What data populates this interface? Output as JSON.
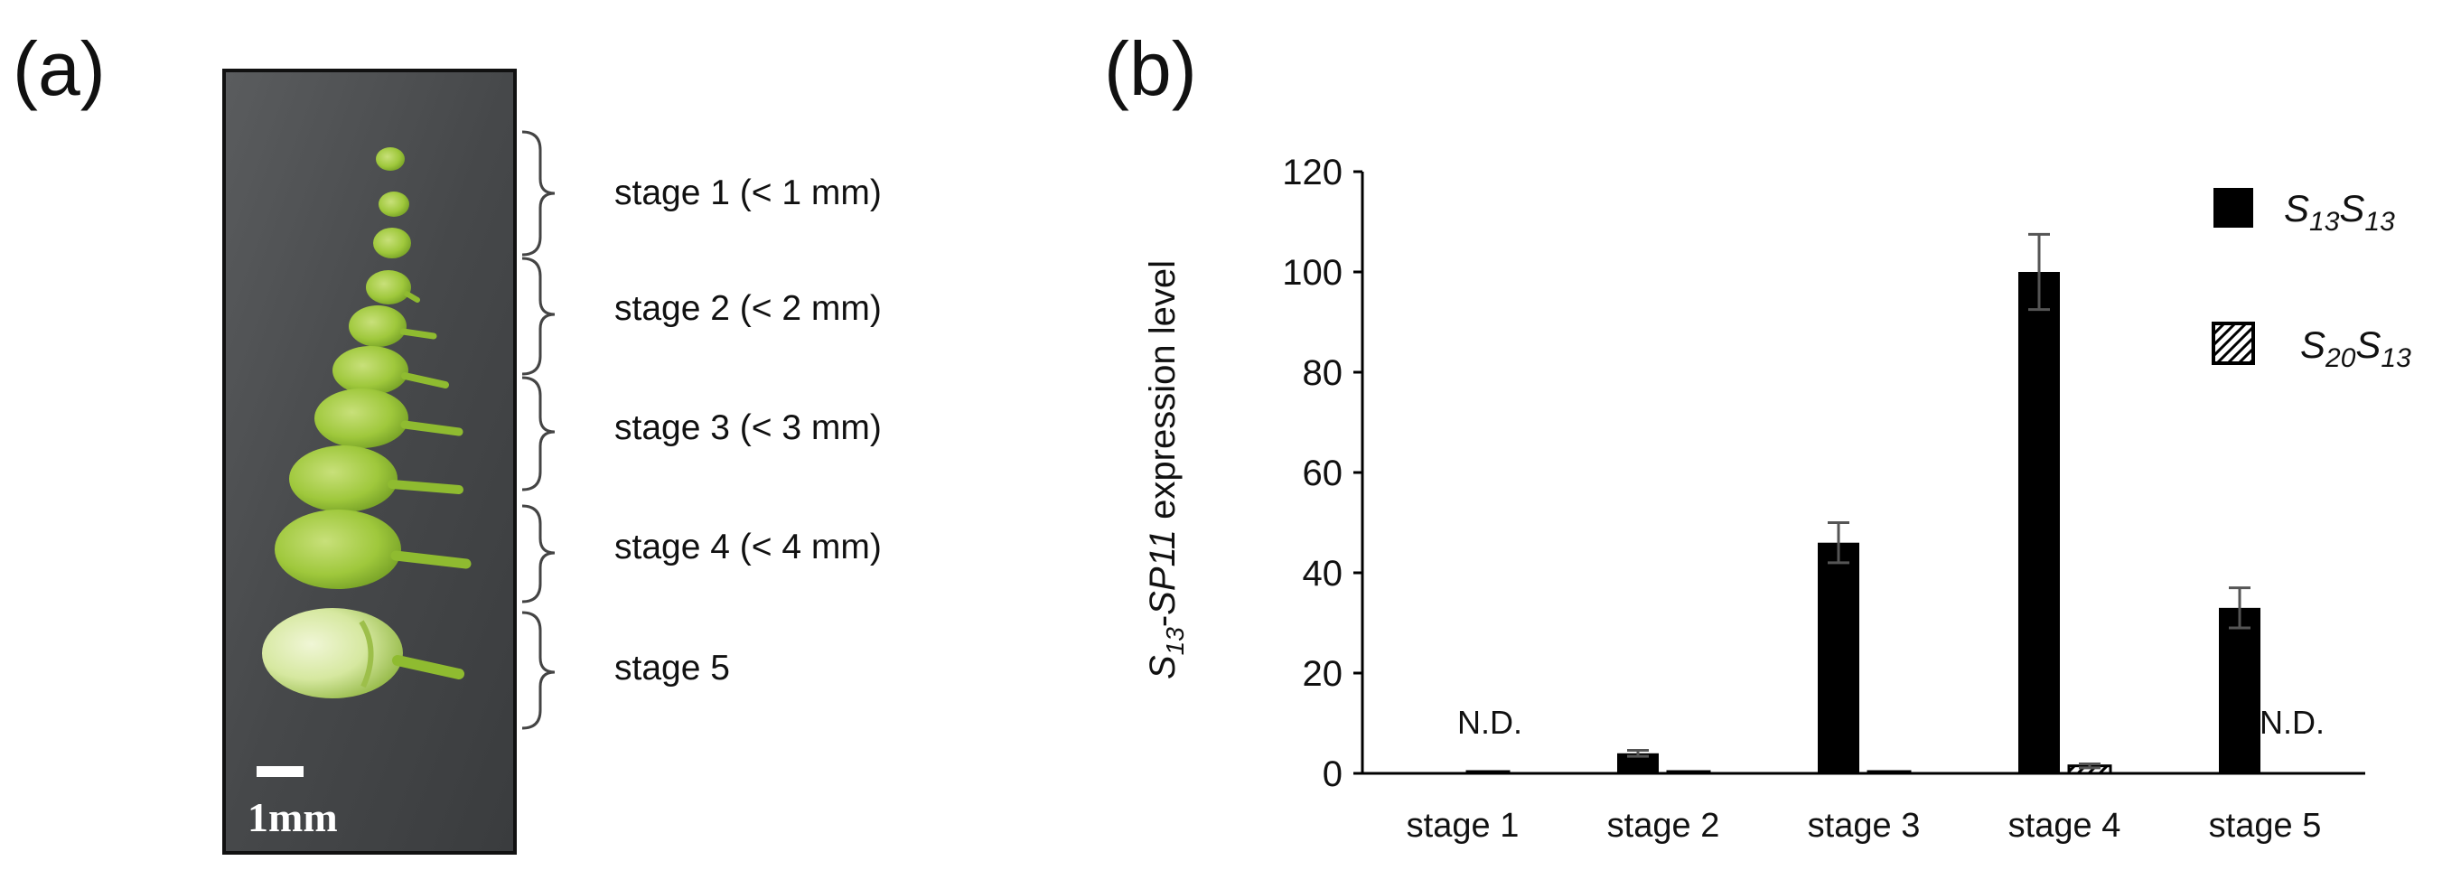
{
  "panels": {
    "a": "(a)",
    "b": "(b)"
  },
  "photo": {
    "scale_label": "1mm",
    "stage_labels": [
      "stage 1 (< 1 mm)",
      "stage 2 (< 2 mm)",
      "stage 3 (< 3 mm)",
      "stage 4 (< 4 mm)",
      "stage 5"
    ],
    "colors": {
      "background": "#4a4c4e",
      "bud": "#9fc83c",
      "bud_light": "#d6e8a0",
      "scale_bar": "#ffffff"
    }
  },
  "chart_data": {
    "type": "bar",
    "categories": [
      "stage 1",
      "stage 2",
      "stage 3",
      "stage 4",
      "stage 5"
    ],
    "ylabel_parts": {
      "s": "S",
      "sub": "13",
      "dash": "-",
      "gene": "SP11",
      "rest": " expression  level"
    },
    "ylim": [
      0,
      120
    ],
    "yticks": [
      0,
      20,
      40,
      60,
      80,
      100,
      120
    ],
    "grid": false,
    "legend_position": "top-right",
    "series": [
      {
        "name_parts": [
          "S",
          "13",
          "S",
          "13"
        ],
        "values": [
          null,
          4,
          46,
          100,
          33
        ],
        "errors": [
          null,
          0.6,
          4,
          7.5,
          4
        ],
        "color": "#000000",
        "pattern": "solid"
      },
      {
        "name_parts": [
          "S",
          "20",
          "S",
          "13"
        ],
        "values": [
          0,
          0.3,
          0.3,
          1.5,
          null
        ],
        "errors": [
          0,
          0,
          0,
          0.4,
          0
        ],
        "color": "#000000",
        "pattern": "hatched"
      }
    ],
    "annotations": [
      {
        "category": "stage 1",
        "text": "N.D."
      },
      {
        "category": "stage 5",
        "text": "N.D."
      }
    ],
    "error_bar_color": "#555555"
  }
}
